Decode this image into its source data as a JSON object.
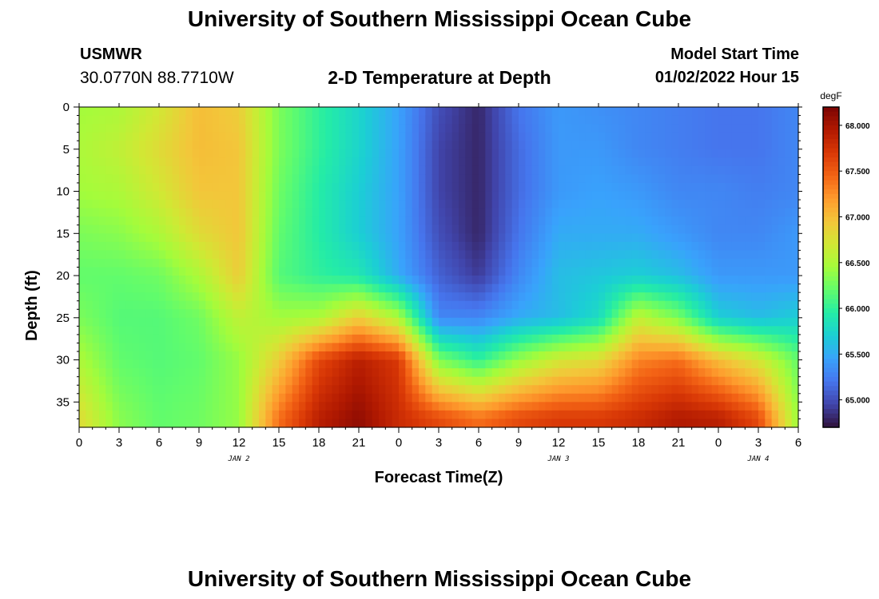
{
  "header": {
    "title": "University of Southern Mississippi Ocean Cube",
    "station": "USMWR",
    "coordinates": "30.0770N  88.7710W",
    "subtitle": "2-D Temperature at Depth",
    "model_start_label": "Model Start Time",
    "model_start_value": "01/02/2022 Hour 15"
  },
  "footer": {
    "title": "University of Southern Mississippi Ocean Cube"
  },
  "chart_data": {
    "type": "heatmap",
    "title": "2-D Temperature at Depth",
    "xlabel": "Forecast Time(Z)",
    "ylabel": "Depth (ft)",
    "x_hours": [
      0,
      54
    ],
    "x_ticks": [
      "0",
      "3",
      "6",
      "9",
      "12",
      "15",
      "18",
      "21",
      "0",
      "3",
      "6",
      "9",
      "12",
      "15",
      "18",
      "21",
      "0",
      "3",
      "6"
    ],
    "date_labels": [
      {
        "text": "JAN 2",
        "hour": 12
      },
      {
        "text": "JAN 3",
        "hour": 36
      },
      {
        "text": "JAN 4",
        "hour": 51
      }
    ],
    "y_ticks": [
      0,
      5,
      10,
      15,
      20,
      25,
      30,
      35
    ],
    "ylim": [
      0,
      38
    ],
    "colorbar": {
      "unit": "degF",
      "min": 64.7,
      "max": 68.2,
      "ticks": [
        "65.000",
        "65.500",
        "66.000",
        "66.500",
        "67.000",
        "67.500",
        "68.000"
      ],
      "colors": [
        "#30123b",
        "#4145ab",
        "#4675ed",
        "#39a2fc",
        "#1bcfd4",
        "#24eca6",
        "#61fc6c",
        "#a4fc3b",
        "#d1e834",
        "#f3c63a",
        "#fe9b2d",
        "#f36315",
        "#d93806",
        "#b11901",
        "#7a0403"
      ]
    },
    "time_profiles": [
      {
        "hour": 0,
        "temps": [
          66.45,
          66.5,
          66.45,
          66.3,
          66.2,
          66.3,
          66.5,
          66.8
        ]
      },
      {
        "hour": 3,
        "temps": [
          66.5,
          66.6,
          66.5,
          66.35,
          66.2,
          66.15,
          66.2,
          66.35
        ]
      },
      {
        "hour": 6,
        "temps": [
          66.7,
          66.8,
          66.7,
          66.5,
          66.25,
          66.15,
          66.15,
          66.2
        ]
      },
      {
        "hour": 9,
        "temps": [
          67.0,
          67.0,
          66.95,
          66.8,
          66.5,
          66.25,
          66.2,
          66.25
        ]
      },
      {
        "hour": 12,
        "temps": [
          66.9,
          66.95,
          66.95,
          66.95,
          66.9,
          66.6,
          66.4,
          66.4
        ]
      },
      {
        "hour": 15,
        "temps": [
          66.3,
          66.3,
          66.25,
          66.2,
          66.15,
          66.45,
          66.9,
          67.4
        ]
      },
      {
        "hour": 18,
        "temps": [
          66.0,
          66.0,
          65.95,
          65.95,
          66.0,
          66.5,
          67.6,
          67.9
        ]
      },
      {
        "hour": 21,
        "temps": [
          65.75,
          65.75,
          65.7,
          65.7,
          65.9,
          66.9,
          67.9,
          68.1
        ]
      },
      {
        "hour": 24,
        "temps": [
          65.45,
          65.45,
          65.45,
          65.45,
          65.5,
          66.5,
          67.7,
          67.8
        ]
      },
      {
        "hour": 27,
        "temps": [
          65.0,
          64.95,
          64.95,
          65.0,
          65.1,
          65.3,
          66.3,
          67.6
        ]
      },
      {
        "hour": 30,
        "temps": [
          64.8,
          64.8,
          64.8,
          64.8,
          64.9,
          65.3,
          66.0,
          67.4
        ]
      },
      {
        "hour": 33,
        "temps": [
          65.2,
          65.15,
          65.15,
          65.2,
          65.3,
          65.5,
          66.4,
          67.6
        ]
      },
      {
        "hour": 36,
        "temps": [
          65.4,
          65.4,
          65.4,
          65.5,
          65.6,
          65.6,
          66.7,
          67.7
        ]
      },
      {
        "hour": 39,
        "temps": [
          65.35,
          65.4,
          65.45,
          65.5,
          65.65,
          65.8,
          66.8,
          67.7
        ]
      },
      {
        "hour": 42,
        "temps": [
          65.3,
          65.3,
          65.4,
          65.5,
          65.7,
          66.6,
          67.3,
          67.8
        ]
      },
      {
        "hour": 45,
        "temps": [
          65.25,
          65.25,
          65.3,
          65.4,
          65.6,
          66.3,
          67.4,
          67.95
        ]
      },
      {
        "hour": 48,
        "temps": [
          65.2,
          65.2,
          65.3,
          65.3,
          65.4,
          65.7,
          67.0,
          67.9
        ]
      },
      {
        "hour": 51,
        "temps": [
          65.2,
          65.2,
          65.25,
          65.3,
          65.4,
          65.6,
          66.7,
          67.6
        ]
      },
      {
        "hour": 54,
        "temps": [
          65.3,
          65.3,
          65.3,
          65.4,
          65.4,
          65.7,
          66.2,
          66.4
        ]
      }
    ],
    "profile_depths": [
      0,
      5,
      10,
      15,
      20,
      25,
      30,
      37
    ]
  }
}
